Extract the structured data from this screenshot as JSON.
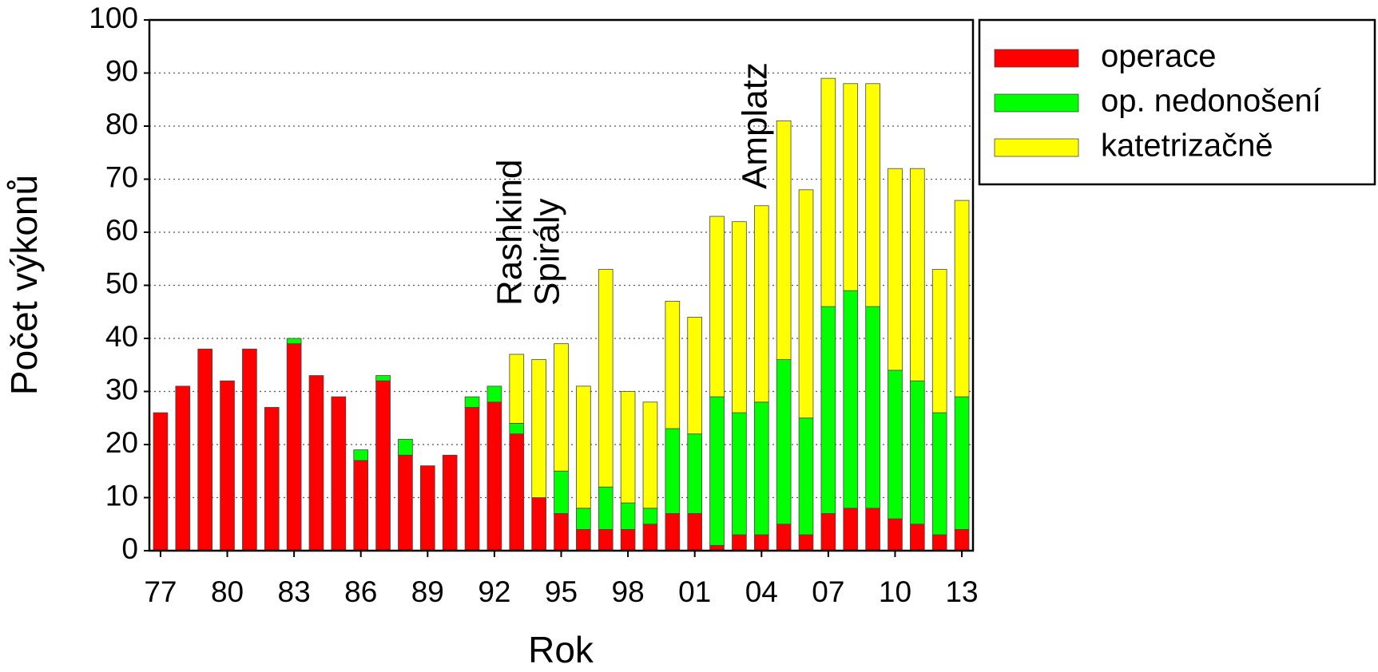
{
  "chart_data": {
    "type": "stacked-bar",
    "xlabel": "Rok",
    "ylabel": "Počet výkonů",
    "categories": [
      "77",
      null,
      null,
      "80",
      null,
      null,
      "83",
      null,
      null,
      "86",
      null,
      null,
      "89",
      null,
      null,
      "92",
      null,
      null,
      "95",
      null,
      null,
      "98",
      null,
      null,
      "01",
      null,
      null,
      "04",
      null,
      null,
      "07",
      null,
      null,
      "10",
      null,
      null,
      "13"
    ],
    "series": [
      {
        "name": "operace",
        "color": "#ff0000",
        "values": [
          26,
          31,
          38,
          32,
          38,
          27,
          39,
          33,
          29,
          17,
          32,
          18,
          16,
          18,
          27,
          28,
          22,
          10,
          7,
          4,
          4,
          4,
          5,
          7,
          7,
          1,
          3,
          3,
          5,
          3,
          7,
          8,
          8,
          6,
          5,
          3,
          4
        ]
      },
      {
        "name": "op. nedonošení",
        "color": "#00ff00",
        "values": [
          0,
          0,
          0,
          0,
          0,
          0,
          1,
          0,
          0,
          2,
          1,
          3,
          0,
          0,
          2,
          3,
          2,
          0,
          8,
          4,
          8,
          5,
          3,
          16,
          15,
          28,
          23,
          25,
          31,
          22,
          39,
          41,
          38,
          28,
          27,
          23,
          25
        ]
      },
      {
        "name": "katetrizačně",
        "color": "#ffff00",
        "values": [
          0,
          0,
          0,
          0,
          0,
          0,
          0,
          0,
          0,
          0,
          0,
          0,
          0,
          0,
          0,
          0,
          13,
          26,
          24,
          23,
          41,
          21,
          20,
          24,
          22,
          34,
          36,
          37,
          45,
          43,
          43,
          39,
          42,
          38,
          40,
          27,
          37
        ]
      }
    ],
    "annotations": [
      "Rashkind",
      "Spirály",
      "Amplatz"
    ],
    "ylim": [
      0,
      100
    ],
    "yticks": [
      0,
      10,
      20,
      30,
      40,
      50,
      60,
      70,
      80,
      90,
      100
    ],
    "grid": true,
    "legend": "outside-right-top"
  }
}
